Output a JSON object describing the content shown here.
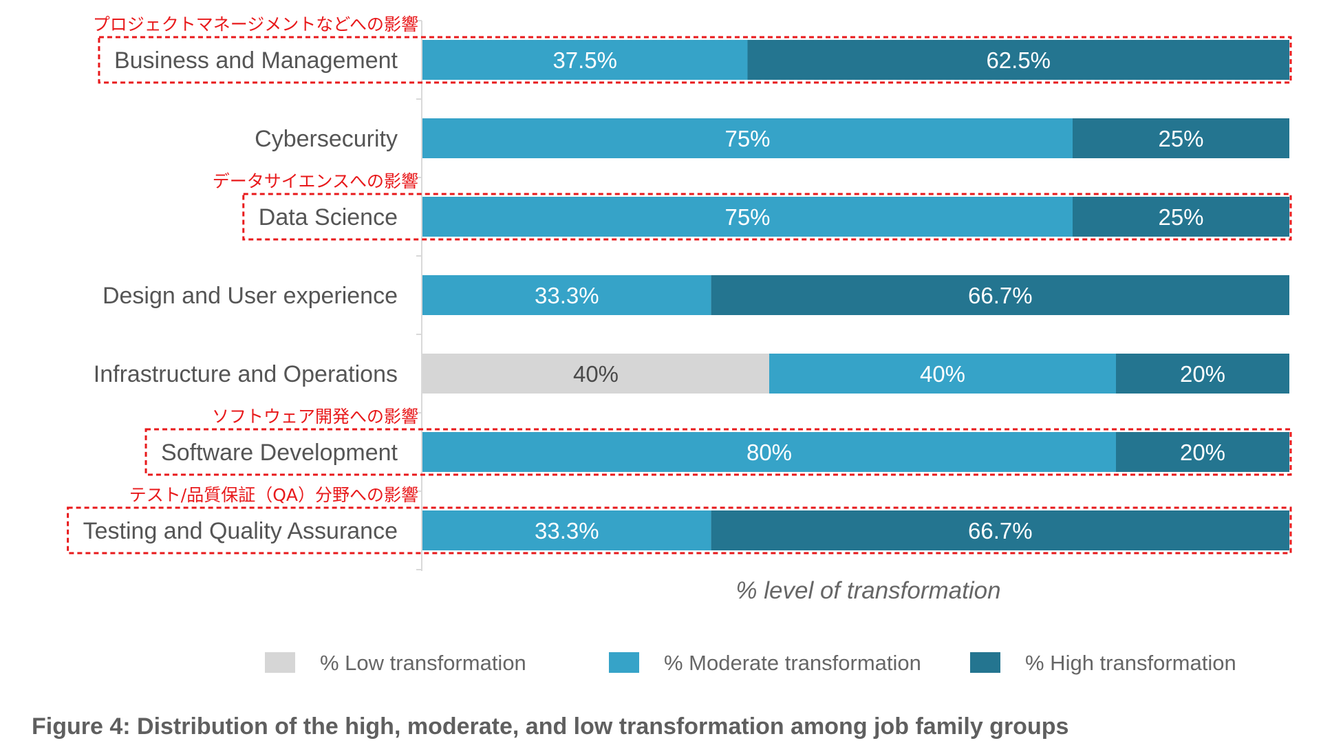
{
  "chart_data": {
    "type": "bar",
    "orientation": "horizontal",
    "stacked": true,
    "categories": [
      "Business and Management",
      "Cybersecurity",
      "Data Science",
      "Design and User experience",
      "Infrastructure and Operations",
      "Software Development",
      "Testing and Quality Assurance"
    ],
    "series": [
      {
        "name": "% Low transformation",
        "color": "#d6d6d6",
        "label_dark": true,
        "values": [
          0,
          0,
          0,
          0,
          40,
          0,
          0
        ],
        "labels": [
          "",
          "",
          "",
          "",
          "40%",
          "",
          ""
        ]
      },
      {
        "name": "% Moderate transformation",
        "color": "#36a3c8",
        "label_dark": false,
        "values": [
          37.5,
          75,
          75,
          33.3,
          40,
          80,
          33.3
        ],
        "labels": [
          "37.5%",
          "75%",
          "75%",
          "33.3%",
          "40%",
          "80%",
          "33.3%"
        ]
      },
      {
        "name": "% High transformation",
        "color": "#247590",
        "label_dark": false,
        "values": [
          62.5,
          25,
          25,
          66.7,
          20,
          20,
          66.7
        ],
        "labels": [
          "62.5%",
          "25%",
          "25%",
          "66.7%",
          "20%",
          "20%",
          "66.7%"
        ]
      }
    ],
    "xlabel": "% level of transformation",
    "ylabel": "",
    "xlim": [
      0,
      100
    ],
    "grid": false,
    "legend": "bottom",
    "annotations": [
      {
        "category": "Business and Management",
        "text": "プロジェクトマネージメントなどへの影響"
      },
      {
        "category": "Data Science",
        "text": "データサイエンスへの影響"
      },
      {
        "category": "Software Development",
        "text": "ソフトウェア開発への影響"
      },
      {
        "category": "Testing and Quality Assurance",
        "text": "テスト/品質保証（QA）分野への影響"
      }
    ],
    "annotation_color": "#e8191b",
    "caption": "Figure 4: Distribution of the high, moderate, and low transformation among job family groups"
  }
}
